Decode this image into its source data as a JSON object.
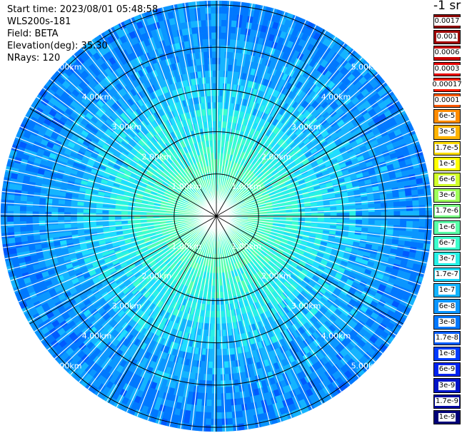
{
  "header": {
    "start_time": "Start time: 2023/08/01 05:48:58",
    "instrument": "WLS200s-181",
    "field": "Field: BETA",
    "elevation": "Elevation(deg): 35.30",
    "nrays": "NRays: 120"
  },
  "legend": {
    "unit": "-1 sr",
    "entries": [
      {
        "label": "0.0017",
        "color": "#8b0000"
      },
      {
        "label": "0.001",
        "color": "#a00000"
      },
      {
        "label": "0.0006",
        "color": "#c80000"
      },
      {
        "label": "0.0003",
        "color": "#e60000"
      },
      {
        "label": "0.00017",
        "color": "#ff1a00"
      },
      {
        "label": "0.0001",
        "color": "#ff5a00"
      },
      {
        "label": "6e-5",
        "color": "#ff8c00"
      },
      {
        "label": "3e-5",
        "color": "#ffb400"
      },
      {
        "label": "1.7e-5",
        "color": "#ffdc00"
      },
      {
        "label": "1e-5",
        "color": "#ffff00"
      },
      {
        "label": "6e-6",
        "color": "#d2ff2a"
      },
      {
        "label": "3e-6",
        "color": "#a0ff5a"
      },
      {
        "label": "1.7e-6",
        "color": "#78ff82"
      },
      {
        "label": "1e-6",
        "color": "#5affa8"
      },
      {
        "label": "6e-7",
        "color": "#3cffcc"
      },
      {
        "label": "3e-7",
        "color": "#28f0e6"
      },
      {
        "label": "1.7e-7",
        "color": "#1edcff"
      },
      {
        "label": "1e-7",
        "color": "#14b4ff"
      },
      {
        "label": "6e-8",
        "color": "#0a96ff"
      },
      {
        "label": "3e-8",
        "color": "#0078ff"
      },
      {
        "label": "1.7e-8",
        "color": "#005aff"
      },
      {
        "label": "1e-8",
        "color": "#003cff"
      },
      {
        "label": "6e-9",
        "color": "#0024f0"
      },
      {
        "label": "3e-9",
        "color": "#0014c8"
      },
      {
        "label": "1.7e-9",
        "color": "#0008a0"
      },
      {
        "label": "1e-9",
        "color": "#000078"
      }
    ]
  },
  "chart_data": {
    "type": "heatmap",
    "projection": "polar PPI",
    "field": "BETA",
    "rays": 120,
    "range_rings": [
      "1.00km",
      "2.00km",
      "3.00km",
      "4.00km",
      "5.00km"
    ],
    "range_ring_values_km": [
      1,
      2,
      3,
      4,
      5
    ],
    "max_range_km": 5.1,
    "spokes_deg": [
      0,
      30,
      60,
      90,
      120,
      150,
      180,
      210,
      240,
      270,
      300,
      330
    ],
    "profile": [
      {
        "range_km": 0.5,
        "beta": "1e-6"
      },
      {
        "range_km": 1.0,
        "beta": "1e-6"
      },
      {
        "range_km": 1.5,
        "beta": "3e-7"
      },
      {
        "range_km": 2.0,
        "beta": "1.7e-7"
      },
      {
        "range_km": 3.0,
        "beta": "6e-8"
      },
      {
        "range_km": 4.0,
        "beta": "3e-8"
      },
      {
        "range_km": 5.0,
        "beta": "1.7e-8"
      }
    ]
  }
}
